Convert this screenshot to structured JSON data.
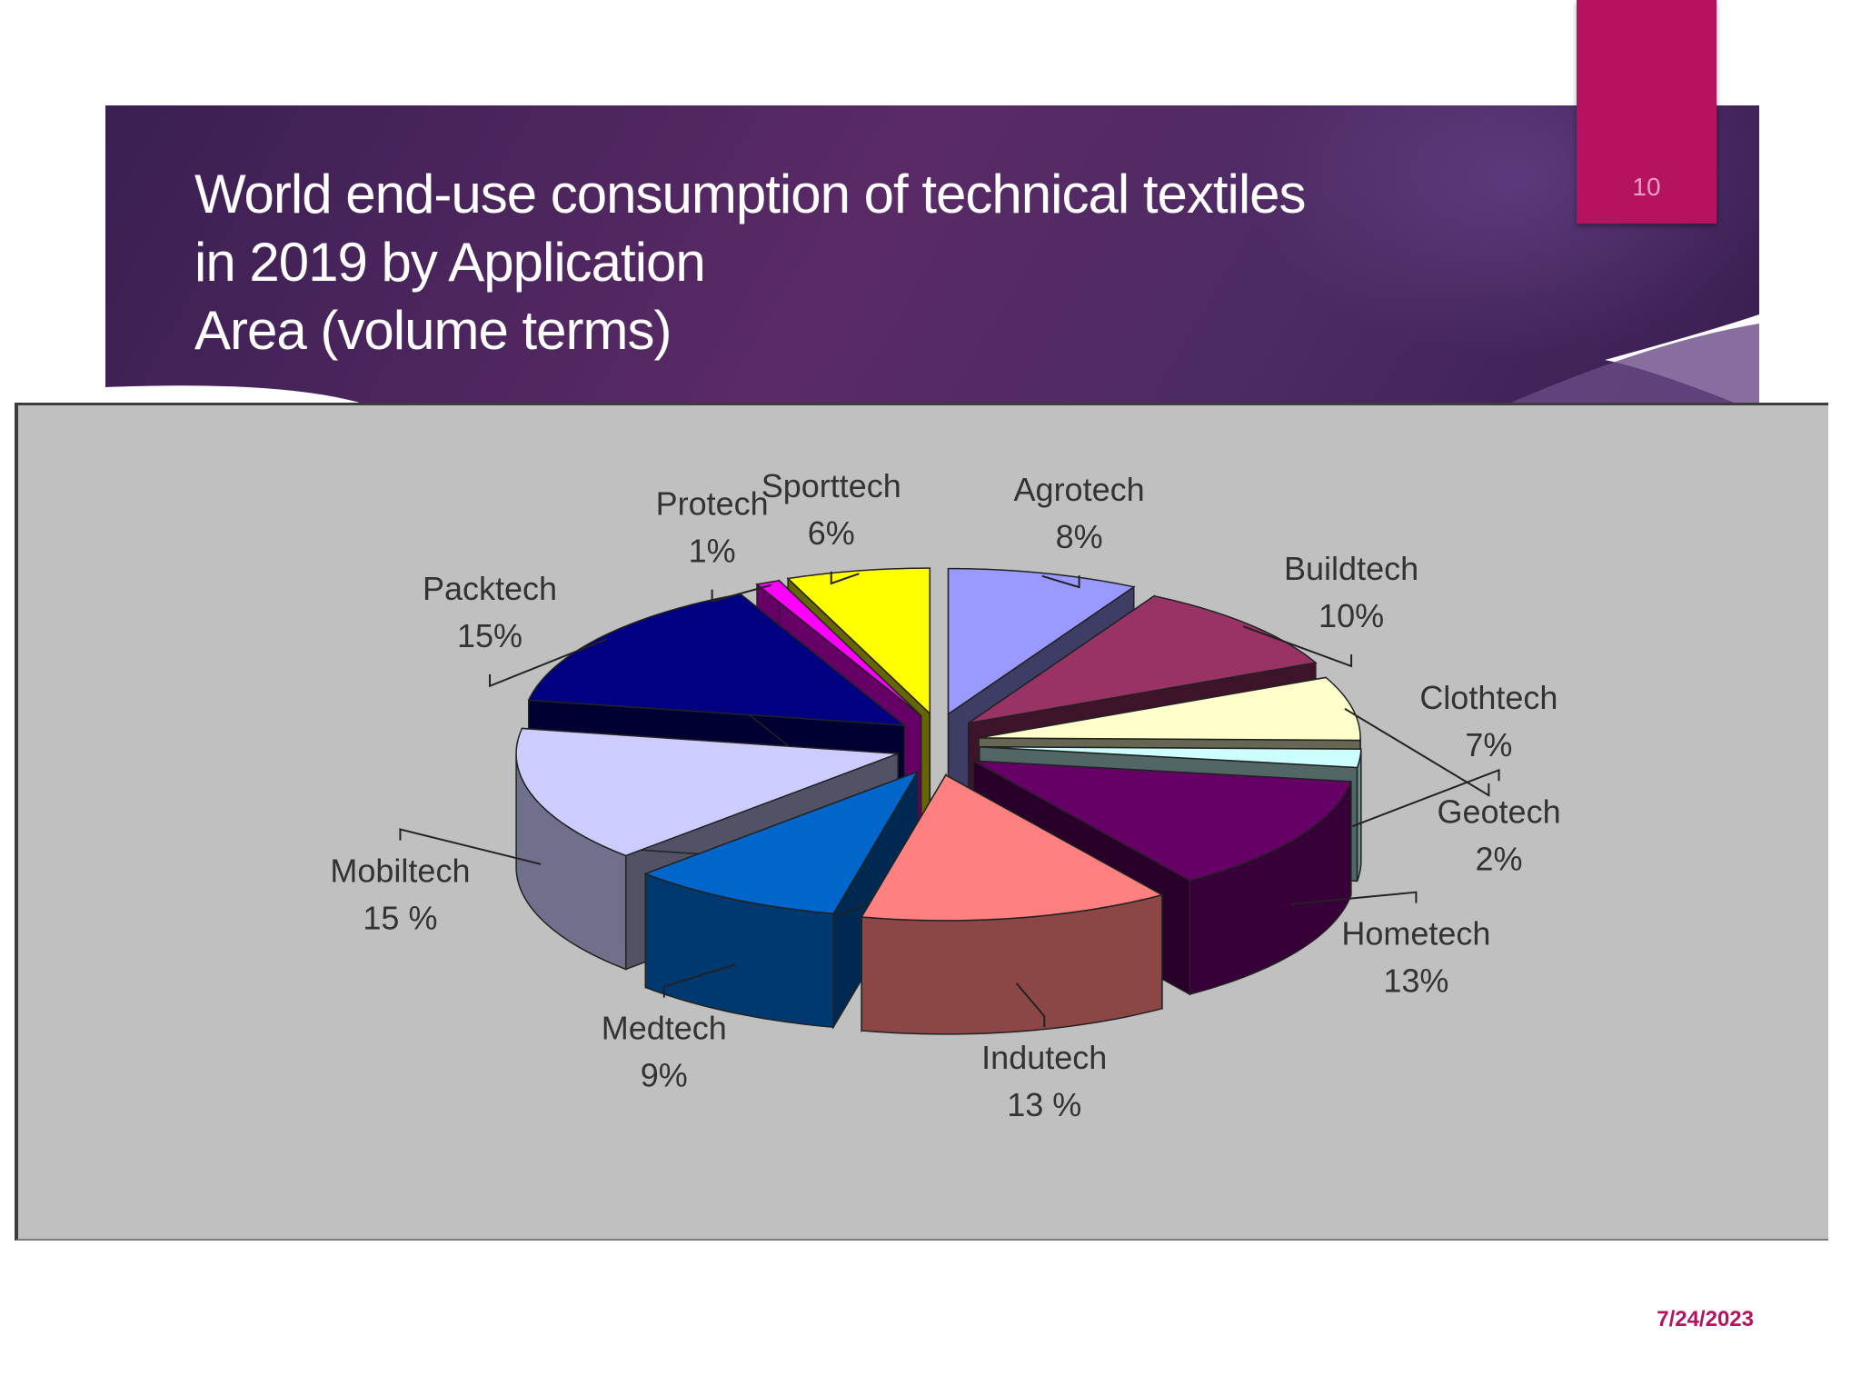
{
  "slide": {
    "title_lines": [
      "World end-use consumption of technical textiles",
      "in 2019 by Application",
      "Area (volume terms)"
    ],
    "page_number": "10",
    "date": "7/24/2023",
    "accent_color": "#b5135f",
    "banner_color": "#4a2560"
  },
  "chart_data": {
    "type": "pie",
    "style": "3d-exploded",
    "title": "",
    "background": "#c0c0c0",
    "slices": [
      {
        "label": "Agrotech",
        "value_label": "8%",
        "value": 8,
        "color": "#9999ff"
      },
      {
        "label": "Buildtech",
        "value_label": "10%",
        "value": 10,
        "color": "#993366"
      },
      {
        "label": "Clothtech",
        "value_label": "7%",
        "value": 7,
        "color": "#ffffcc"
      },
      {
        "label": "Geotech",
        "value_label": "2%",
        "value": 2,
        "color": "#ccffff"
      },
      {
        "label": "Hometech",
        "value_label": "13%",
        "value": 13,
        "color": "#660066"
      },
      {
        "label": "Indutech",
        "value_label": "13 %",
        "value": 13,
        "color": "#ff8080"
      },
      {
        "label": "Medtech",
        "value_label": "9%",
        "value": 9,
        "color": "#0066cc"
      },
      {
        "label": "Mobiltech",
        "value_label": "15 %",
        "value": 15,
        "color": "#ccccff"
      },
      {
        "label": "Packtech",
        "value_label": "15%",
        "value": 15,
        "color": "#000080"
      },
      {
        "label": "Protech",
        "value_label": "1%",
        "value": 1,
        "color": "#ff00ff"
      },
      {
        "label": "Sporttech",
        "value_label": "6%",
        "value": 6,
        "color": "#ffff00"
      }
    ]
  }
}
